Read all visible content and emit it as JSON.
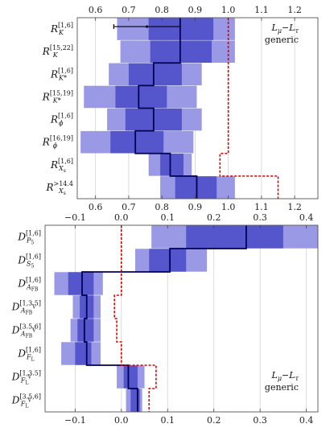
{
  "chart_data": [
    {
      "type": "bar",
      "xlim": [
        0.545,
        1.27
      ],
      "grid": true,
      "ticks": [
        0.6,
        0.7,
        0.8,
        0.9,
        1.0,
        1.1,
        1.2
      ],
      "tick_labels": [
        "0.6",
        "0.7",
        "0.8",
        "0.9",
        "1.0",
        "1.1",
        "1.2"
      ],
      "legend": {
        "title": "L",
        "title_sub": "μ",
        "dash": "−",
        "title2": "L",
        "title2_sub": "τ",
        "subtitle": "generic",
        "position": "top-right"
      },
      "colors": {
        "outer": "#9999e6",
        "inner": "#5656cc",
        "central_line": "#000055",
        "sm_line": "#dd0000"
      },
      "rows": [
        {
          "label": {
            "main": "R",
            "sub": "K",
            "sup": "[1,6]"
          },
          "outer": [
            0.665,
            1.02
          ],
          "inner": [
            0.76,
            0.955
          ],
          "central": 0.855,
          "sm": 1.0
        },
        {
          "label": {
            "main": "R",
            "sub": "K",
            "sup": "[15,22]"
          },
          "outer": [
            0.675,
            1.02
          ],
          "inner": [
            0.765,
            0.95
          ],
          "central": 0.855,
          "sm": 1.0
        },
        {
          "label": {
            "main": "R",
            "sub": "K*",
            "sup": "[1,6]"
          },
          "outer": [
            0.64,
            0.92
          ],
          "inner": [
            0.7,
            0.86
          ],
          "central": 0.775,
          "sm": 1.0
        },
        {
          "label": {
            "main": "R",
            "sub": "K*",
            "sup": "[15,19]"
          },
          "outer": [
            0.565,
            0.905
          ],
          "inner": [
            0.66,
            0.815
          ],
          "central": 0.73,
          "sm": 1.0
        },
        {
          "label": {
            "main": "R",
            "sub": "ϕ",
            "sup": "[1,6]"
          },
          "outer": [
            0.635,
            0.92
          ],
          "inner": [
            0.69,
            0.86
          ],
          "central": 0.775,
          "sm": 1.0
        },
        {
          "label": {
            "main": "R",
            "sub": "ϕ",
            "sup": "[16,19]"
          },
          "outer": [
            0.555,
            0.895
          ],
          "inner": [
            0.645,
            0.805
          ],
          "central": 0.72,
          "sm": 1.0
        },
        {
          "label": {
            "main": "R",
            "sub": "X",
            "sub2": "s",
            "sup": "[1,6]"
          },
          "outer": [
            0.76,
            0.89
          ],
          "inner": [
            0.795,
            0.865
          ],
          "central": 0.825,
          "sm": 0.975
        },
        {
          "label": {
            "main": "R",
            "sub": "X",
            "sub2": "s",
            "sup": ">14.4"
          },
          "outer": [
            0.795,
            1.02
          ],
          "inner": [
            0.84,
            0.965
          ],
          "central": 0.905,
          "sm": 1.15
        }
      ],
      "error_bar": {
        "row": 0,
        "from": 0.655,
        "to": 0.855
      }
    },
    {
      "type": "bar",
      "xlim": [
        -0.165,
        0.425
      ],
      "grid": true,
      "ticks": [
        -0.1,
        0.0,
        0.1,
        0.2,
        0.3,
        0.4
      ],
      "tick_labels": [
        "−0.1",
        "0.0",
        "0.1",
        "0.2",
        "0.3",
        "0.4"
      ],
      "legend": {
        "title": "L",
        "title_sub": "μ",
        "dash": "−",
        "title2": "L",
        "title2_sub": "τ",
        "subtitle": "generic",
        "position": "bottom-right"
      },
      "colors": {
        "outer": "#9999e6",
        "inner": "#5656cc",
        "central_line": "#000055",
        "sm_line": "#dd0000"
      },
      "rows": [
        {
          "label": {
            "main": "D",
            "sub": "P",
            "sub2": "5",
            "sup": "[1,6]"
          },
          "outer": [
            0.065,
            0.425
          ],
          "inner": [
            0.14,
            0.35
          ],
          "central": 0.27,
          "sm": 0.0
        },
        {
          "label": {
            "main": "D",
            "sub": "S",
            "sub2": "5",
            "sup": "[1,6]"
          },
          "outer": [
            0.03,
            0.185
          ],
          "inner": [
            0.06,
            0.14
          ],
          "central": 0.105,
          "sm": 0.0
        },
        {
          "label": {
            "main": "D",
            "sub": "A",
            "sub2": "FB",
            "sup": "[1,6]"
          },
          "outer": [
            -0.145,
            -0.04
          ],
          "inner": [
            -0.115,
            -0.06
          ],
          "central": -0.085,
          "sm": 0.0
        },
        {
          "label": {
            "main": "D",
            "sub": "A",
            "sub2": "FB",
            "sub3": "V",
            "sup": "[1,3.5]"
          },
          "outer": [
            -0.105,
            -0.045
          ],
          "inner": [
            -0.09,
            -0.06
          ],
          "central": -0.075,
          "sm": -0.015
        },
        {
          "label": {
            "main": "D",
            "sub": "A",
            "sub2": "FB",
            "sub3": "V",
            "sup": "[3.5,6]"
          },
          "outer": [
            -0.11,
            -0.045
          ],
          "inner": [
            -0.095,
            -0.06
          ],
          "central": -0.08,
          "sm": -0.01
        },
        {
          "label": {
            "main": "D",
            "sub": "F",
            "sub2": "L",
            "sup": "[1,6]"
          },
          "outer": [
            -0.13,
            -0.045
          ],
          "inner": [
            -0.1,
            -0.065
          ],
          "central": -0.075,
          "sm": 0.0
        },
        {
          "label": {
            "main": "D",
            "sub": "F",
            "sub2": "L",
            "sub3": "V",
            "sup": "[1,3.5]"
          },
          "outer": [
            -0.01,
            0.05
          ],
          "inner": [
            0.005,
            0.035
          ],
          "central": 0.015,
          "sm": 0.075
        },
        {
          "label": {
            "main": "D",
            "sub": "F",
            "sub2": "L",
            "sub3": "V",
            "sup": "[3.5,6]"
          },
          "outer": [
            0.01,
            0.045
          ],
          "inner": [
            0.02,
            0.04
          ],
          "central": 0.035,
          "sm": 0.06
        }
      ]
    }
  ]
}
